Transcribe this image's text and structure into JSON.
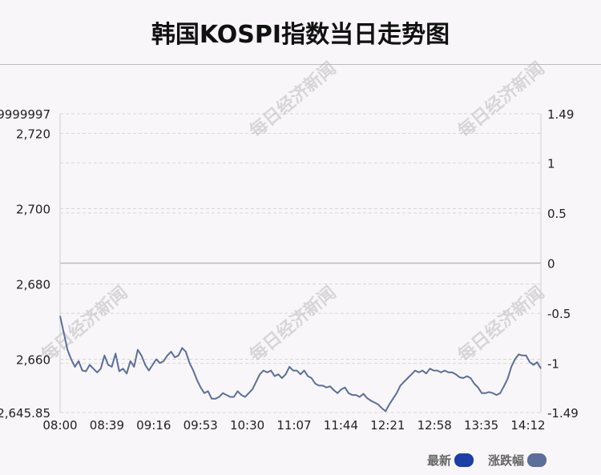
{
  "title": "韩国KOSPI指数当日走势图",
  "watermark": "每日经济新闻",
  "legend": [
    {
      "label": "最新",
      "color": "#1a3fa8"
    },
    {
      "label": "涨跌幅",
      "color": "#5b6f9a"
    }
  ],
  "colors": {
    "line": "#5b6f9a",
    "grid": "#d8d8d8",
    "zero_line": "#bbbbbb"
  },
  "chart_data": {
    "type": "line",
    "x_ticks": [
      "08:00",
      "08:39",
      "09:16",
      "09:53",
      "10:30",
      "11:07",
      "11:44",
      "12:21",
      "12:58",
      "13:35",
      "14:12"
    ],
    "y_left": {
      "ticks": [
        2645.85,
        2660,
        2680,
        2700,
        2720
      ],
      "tick_labels": [
        "2,645.85",
        "2,660",
        "2,680",
        "2,700",
        "2,720"
      ],
      "top_label": "9999997",
      "range": [
        2645.85,
        2725.2
      ]
    },
    "y_right": {
      "ticks": [
        -1.49,
        -1,
        -0.5,
        0,
        0.5,
        1,
        1.49
      ],
      "tick_labels": [
        "-1.49",
        "-1",
        "-0.5",
        "0",
        "0.5",
        "1",
        "1.49"
      ],
      "range": [
        -1.49,
        1.49
      ]
    },
    "series": [
      {
        "values": [
          2671.5,
          2667,
          2662.5,
          2660,
          2658,
          2659.5,
          2657,
          2656.8,
          2658.5,
          2657.5,
          2656.5,
          2657.5,
          2661,
          2658.5,
          2658,
          2661.5,
          2656.8,
          2657.5,
          2656.2,
          2659.5,
          2658,
          2662.5,
          2661,
          2658.5,
          2657,
          2658.5,
          2660,
          2659,
          2659.5,
          2661,
          2662,
          2660.5,
          2661,
          2663,
          2662,
          2659,
          2657,
          2654.5,
          2652.5,
          2651,
          2651.5,
          2649.5,
          2649.5,
          2650,
          2651,
          2650.5,
          2650,
          2650,
          2651.5,
          2650.5,
          2650,
          2651,
          2652,
          2654,
          2656,
          2657,
          2656.5,
          2657,
          2655.5,
          2656,
          2655,
          2656,
          2658,
          2657,
          2657,
          2656,
          2657,
          2655.5,
          2655,
          2653.5,
          2653,
          2653,
          2652.5,
          2652.8,
          2651.8,
          2651,
          2652,
          2652.5,
          2651,
          2650.5,
          2650.5,
          2650,
          2650.8,
          2649.7,
          2649,
          2648.5,
          2648,
          2647,
          2646.2,
          2648,
          2649.5,
          2651,
          2653,
          2654,
          2655,
          2656,
          2657,
          2656.5,
          2657,
          2656.2,
          2657.5,
          2657,
          2657,
          2656.5,
          2657,
          2656.5,
          2656.5,
          2656,
          2655.2,
          2655,
          2655.5,
          2655,
          2653.5,
          2652.5,
          2651,
          2651,
          2651.3,
          2651,
          2650.5,
          2651,
          2652.8,
          2654.8,
          2658,
          2660,
          2661.3,
          2661,
          2661,
          2659.2,
          2658.5,
          2659.2,
          2657.5
        ]
      }
    ]
  }
}
